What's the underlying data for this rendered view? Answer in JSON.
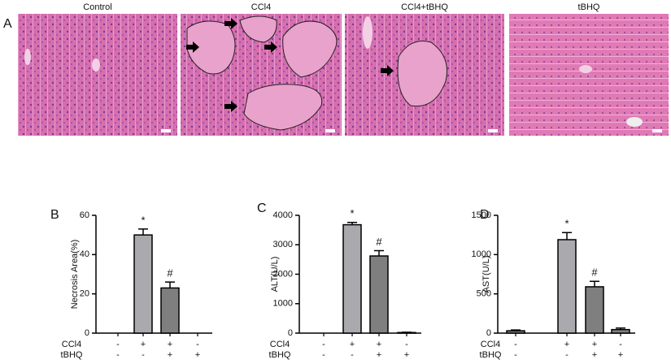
{
  "panel_a": {
    "label": "A",
    "titles": [
      "Control",
      "CCl4",
      "CCl4+tBHQ",
      "tBHQ"
    ]
  },
  "chart_data": [
    {
      "type": "bar",
      "label": "B",
      "y_label": "Necrosis Area(%)",
      "values": [
        0,
        50,
        23,
        0
      ],
      "errors": [
        0,
        3,
        3,
        0
      ],
      "colors": [
        "#a9a9ae",
        "#a9a9ae",
        "#7f7f7f",
        "#7f7f7f"
      ],
      "annotations": [
        null,
        "*",
        "#",
        null
      ],
      "ylim": [
        0,
        60
      ],
      "yticks": [
        0,
        20,
        40,
        60
      ],
      "group_rows": [
        {
          "label": "CCl4",
          "signs": [
            "-",
            "+",
            "+",
            "-"
          ]
        },
        {
          "label": "tBHQ",
          "signs": [
            "-",
            "-",
            "+",
            "+"
          ]
        }
      ]
    },
    {
      "type": "bar",
      "label": "C",
      "y_label": "ALT(U/L)",
      "values": [
        0,
        3680,
        2620,
        20
      ],
      "errors": [
        0,
        80,
        180,
        10
      ],
      "colors": [
        "#a9a9ae",
        "#a9a9ae",
        "#7f7f7f",
        "#7f7f7f"
      ],
      "annotations": [
        null,
        "*",
        "#",
        null
      ],
      "ylim": [
        0,
        4000
      ],
      "yticks": [
        0,
        1000,
        2000,
        3000,
        4000
      ],
      "group_rows": [
        {
          "label": "CCl4",
          "signs": [
            "-",
            "+",
            "+",
            "-"
          ]
        },
        {
          "label": "tBHQ",
          "signs": [
            "-",
            "-",
            "+",
            "+"
          ]
        }
      ]
    },
    {
      "type": "bar",
      "label": "D",
      "y_label": "AST(U/L)",
      "values": [
        30,
        1190,
        590,
        45
      ],
      "errors": [
        10,
        90,
        70,
        20
      ],
      "colors": [
        "#7f7f7f",
        "#a9a9ae",
        "#7f7f7f",
        "#7f7f7f"
      ],
      "annotations": [
        null,
        "*",
        "#",
        null
      ],
      "ylim": [
        0,
        1500
      ],
      "yticks": [
        0,
        500,
        1000,
        1500
      ],
      "group_rows": [
        {
          "label": "CCl4",
          "signs": [
            "-",
            "+",
            "+",
            "-"
          ]
        },
        {
          "label": "tBHQ",
          "signs": [
            "-",
            "-",
            "+",
            "+"
          ]
        }
      ]
    }
  ]
}
